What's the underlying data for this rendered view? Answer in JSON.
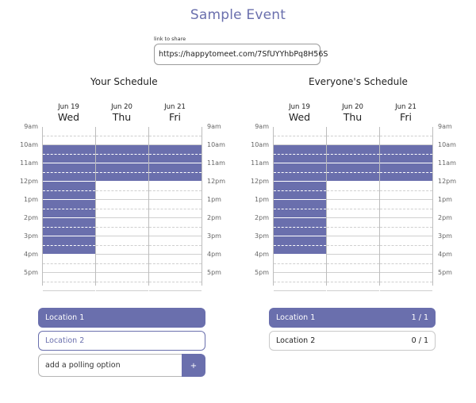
{
  "event": {
    "title": "Sample Event"
  },
  "share": {
    "label": "link to share",
    "url": "https://happytomeet.com/7SfUYYhbPq8H56S"
  },
  "your_schedule": {
    "title": "Your Schedule"
  },
  "everyone_schedule": {
    "title": "Everyone's Schedule"
  },
  "days": [
    {
      "date": "Jun 19",
      "name": "Wed"
    },
    {
      "date": "Jun 20",
      "name": "Thu"
    },
    {
      "date": "Jun 21",
      "name": "Fri"
    }
  ],
  "times": [
    "9am",
    "10am",
    "11am",
    "12pm",
    "1pm",
    "2pm",
    "3pm",
    "4pm",
    "5pm"
  ],
  "your_availability": {
    "Wed": [
      "10am",
      "10:30am",
      "11am",
      "11:30am",
      "12pm",
      "12:30pm",
      "1pm",
      "1:30pm",
      "2pm",
      "2:30pm",
      "3pm",
      "3:30pm"
    ],
    "Thu": [
      "10am",
      "10:30am",
      "11am",
      "11:30am"
    ],
    "Fri": [
      "10am",
      "10:30am",
      "11am",
      "11:30am"
    ]
  },
  "everyone_availability": {
    "Wed": [
      "10am",
      "10:30am",
      "11am",
      "11:30am",
      "12pm",
      "12:30pm",
      "1pm",
      "1:30pm",
      "2pm",
      "2:30pm",
      "3pm",
      "3:30pm"
    ],
    "Thu": [
      "10am",
      "10:30am",
      "11am",
      "11:30am"
    ],
    "Fri": [
      "10am",
      "10:30am",
      "11am",
      "11:30am"
    ]
  },
  "your_locations": [
    {
      "label": "Location 1",
      "selected": true
    },
    {
      "label": "Location 2",
      "selected": false
    }
  ],
  "everyone_locations": [
    {
      "label": "Location 1",
      "count": "1 / 1",
      "selected": true
    },
    {
      "label": "Location 2",
      "count": "0 / 1",
      "selected": false
    }
  ],
  "polling": {
    "placeholder": "add a polling option",
    "add_label": "+"
  },
  "colors": {
    "accent": "#6a6fad",
    "grid": "#bdbdbd"
  }
}
